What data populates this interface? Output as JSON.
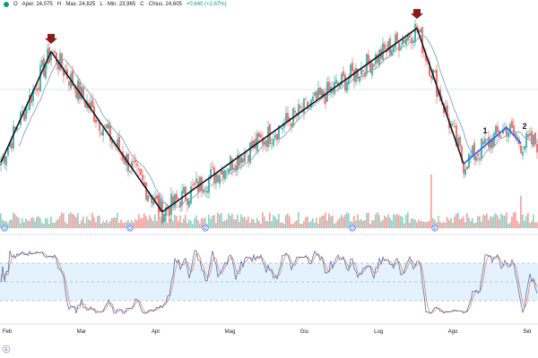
{
  "header": {
    "symbol_dot_color": "#089981",
    "open": "O · Aper. 24,075",
    "high": "H · Max. 24,825",
    "low": "L · Min. 23,965",
    "close": "C · Chius. 24,605",
    "change": "+0,640 (+2,67%)"
  },
  "colors": {
    "up": "#26a69a",
    "down": "#ef5350",
    "volume_up": "#8fd3c8",
    "volume_down": "#f5a3a1",
    "zigzag": "#131722",
    "zigzag_recent": "#2962ff",
    "ma": "#7aa6c2",
    "stoch_k": "#5b6fb0",
    "stoch_d": "#e08a6a",
    "stoch_band": "#e3f2fd",
    "marker": "#8b1a1a"
  },
  "bottom_badge": "E",
  "chart_data": {
    "type": "candlestick",
    "x_axis": {
      "labels": [
        "Feb",
        "Mar",
        "Apr",
        "Mag",
        "Giu",
        "Lug",
        "Ago",
        "Set"
      ]
    },
    "price_range": [
      20,
      34
    ],
    "stoch_range": [
      0,
      100
    ],
    "stoch_levels": [
      80,
      50,
      20
    ],
    "zigzag": [
      {
        "x": 0,
        "y": 23.6
      },
      {
        "x": 28,
        "y": 31.2
      },
      {
        "x": 90,
        "y": 20.2
      },
      {
        "x": 232,
        "y": 32.8
      },
      {
        "x": 258,
        "y": 23.5
      },
      {
        "x": 282,
        "y": 26.0
      },
      {
        "x": 290,
        "y": 24.9
      }
    ],
    "zigzag_blue_from": 258,
    "markers": [
      {
        "x": 28,
        "y": 31.8
      },
      {
        "x": 232,
        "y": 33.5
      }
    ],
    "wave_labels": [
      {
        "x": 270,
        "y": 25.6,
        "text": "1"
      },
      {
        "x": 292,
        "y": 25.9,
        "text": "2"
      }
    ],
    "volume_spikes": [
      {
        "x": 240,
        "v": 100
      },
      {
        "x": 88,
        "v": 60
      },
      {
        "x": 290,
        "v": 60
      }
    ],
    "event_markers": [
      {
        "x": 2,
        "text": "D"
      },
      {
        "x": 72,
        "text": "D"
      },
      {
        "x": 114,
        "text": "E"
      },
      {
        "x": 196,
        "text": "D"
      },
      {
        "x": 242,
        "text": "E"
      }
    ],
    "n_bars": 300
  }
}
